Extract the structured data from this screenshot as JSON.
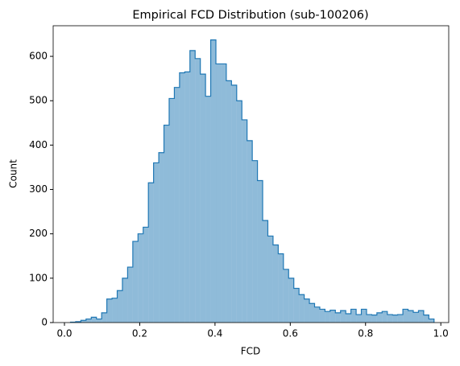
{
  "chart_data": {
    "type": "histogram",
    "title": "Empirical FCD Distribution (sub-100206)",
    "xlabel": "FCD",
    "ylabel": "Count",
    "color": "#1f77b4",
    "bins": [
      0.016,
      0.0298,
      0.0436,
      0.0574,
      0.0712,
      0.085,
      0.0988,
      0.1126,
      0.1264,
      0.1402,
      0.154,
      0.1678,
      0.1816,
      0.1954,
      0.2092,
      0.223,
      0.2368,
      0.2506,
      0.2644,
      0.2782,
      0.292,
      0.3058,
      0.3196,
      0.3334,
      0.3472,
      0.361,
      0.3748,
      0.3886,
      0.4024,
      0.4162,
      0.43,
      0.4438,
      0.4576,
      0.4714,
      0.4852,
      0.499,
      0.5128,
      0.5266,
      0.5404,
      0.5542,
      0.568,
      0.5818,
      0.5956,
      0.6094,
      0.6232,
      0.637,
      0.6508,
      0.6646,
      0.6784,
      0.6922,
      0.706,
      0.7198,
      0.7336,
      0.7474,
      0.7612,
      0.775,
      0.7888,
      0.8026,
      0.8164,
      0.8302,
      0.844,
      0.8578,
      0.8716,
      0.8854,
      0.8992,
      0.913,
      0.9268,
      0.9406,
      0.9544,
      0.9682,
      0.982
    ],
    "values": [
      1,
      2,
      5,
      8,
      12,
      8,
      22,
      53,
      55,
      72,
      100,
      125,
      183,
      200,
      215,
      315,
      360,
      383,
      445,
      505,
      530,
      563,
      565,
      613,
      595,
      560,
      510,
      637,
      583,
      583,
      545,
      535,
      500,
      457,
      410,
      365,
      320,
      230,
      195,
      175,
      155,
      120,
      100,
      77,
      63,
      53,
      43,
      35,
      30,
      25,
      28,
      22,
      27,
      20,
      30,
      18,
      30,
      18,
      17,
      22,
      25,
      18,
      17,
      18,
      30,
      27,
      23,
      27,
      17,
      8
    ],
    "xlim": [
      -0.03,
      1.021
    ],
    "ylim": [
      0,
      669
    ],
    "xticks": [
      {
        "value": 0,
        "label": "0.0"
      },
      {
        "value": 0.2,
        "label": "0.2"
      },
      {
        "value": 0.4,
        "label": "0.4"
      },
      {
        "value": 0.6,
        "label": "0.6"
      },
      {
        "value": 0.8,
        "label": "0.8"
      },
      {
        "value": 1,
        "label": "1.0"
      }
    ],
    "yticks": [
      0,
      100,
      200,
      300,
      400,
      500,
      600
    ]
  }
}
